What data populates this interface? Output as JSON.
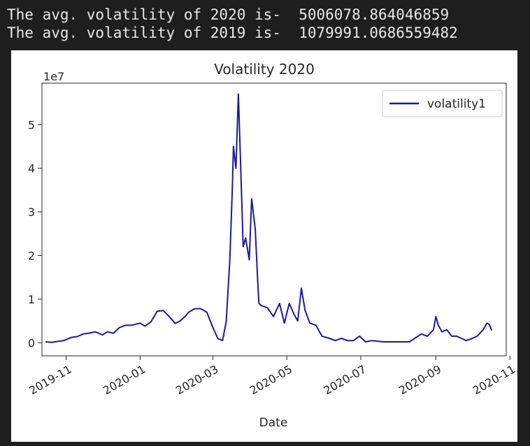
{
  "console": {
    "lines": [
      "The avg. volatility of 2020 is-  5006078.864046859",
      "The avg. volatility of 2019 is-  1079991.0686559482"
    ]
  },
  "chart_data": {
    "type": "line",
    "title": "Volatility 2020",
    "xlabel": "Date",
    "ylabel": "",
    "y_offset_label": "1e7",
    "y_multiplier": 10000000,
    "ylim": [
      -0.3,
      5.95
    ],
    "xlim": [
      "2019-10-12",
      "2020-10-29"
    ],
    "x_ticks": [
      "2019-11",
      "2020-01",
      "2020-03",
      "2020-05",
      "2020-07",
      "2020-09",
      "2020-11"
    ],
    "y_ticks": [
      0,
      1,
      2,
      3,
      4,
      5
    ],
    "grid": false,
    "legend": {
      "position": "top-right",
      "entries": [
        "volatility1"
      ]
    },
    "colors": {
      "volatility1": "#1a1a9c"
    },
    "series": [
      {
        "name": "volatility1",
        "x": [
          "2019-10-15",
          "2019-10-20",
          "2019-10-25",
          "2019-10-30",
          "2019-11-05",
          "2019-11-10",
          "2019-11-15",
          "2019-11-20",
          "2019-11-25",
          "2019-12-01",
          "2019-12-05",
          "2019-12-10",
          "2019-12-15",
          "2019-12-20",
          "2019-12-25",
          "2020-01-01",
          "2020-01-05",
          "2020-01-10",
          "2020-01-15",
          "2020-01-20",
          "2020-01-25",
          "2020-01-30",
          "2020-02-03",
          "2020-02-07",
          "2020-02-10",
          "2020-02-15",
          "2020-02-20",
          "2020-02-25",
          "2020-03-01",
          "2020-03-05",
          "2020-03-09",
          "2020-03-12",
          "2020-03-15",
          "2020-03-17",
          "2020-03-18",
          "2020-03-20",
          "2020-03-22",
          "2020-03-24",
          "2020-03-26",
          "2020-03-28",
          "2020-03-31",
          "2020-04-02",
          "2020-04-05",
          "2020-04-07",
          "2020-04-08",
          "2020-04-10",
          "2020-04-15",
          "2020-04-20",
          "2020-04-25",
          "2020-04-29",
          "2020-05-03",
          "2020-05-07",
          "2020-05-10",
          "2020-05-13",
          "2020-05-16",
          "2020-05-20",
          "2020-05-25",
          "2020-05-30",
          "2020-06-05",
          "2020-06-10",
          "2020-06-15",
          "2020-06-20",
          "2020-06-25",
          "2020-06-30",
          "2020-07-05",
          "2020-07-10",
          "2020-07-20",
          "2020-07-30",
          "2020-08-10",
          "2020-08-20",
          "2020-08-25",
          "2020-08-30",
          "2020-09-01",
          "2020-09-03",
          "2020-09-06",
          "2020-09-10",
          "2020-09-14",
          "2020-09-18",
          "2020-09-22",
          "2020-09-26",
          "2020-10-01",
          "2020-10-05",
          "2020-10-10",
          "2020-10-13",
          "2020-10-15",
          "2020-10-17"
        ],
        "y": [
          0.02,
          0.01,
          0.03,
          0.05,
          0.12,
          0.14,
          0.2,
          0.22,
          0.25,
          0.18,
          0.25,
          0.22,
          0.35,
          0.4,
          0.4,
          0.45,
          0.38,
          0.48,
          0.72,
          0.74,
          0.6,
          0.44,
          0.5,
          0.6,
          0.7,
          0.78,
          0.78,
          0.7,
          0.35,
          0.1,
          0.05,
          0.48,
          1.9,
          3.5,
          4.5,
          4.0,
          5.7,
          4.0,
          2.2,
          2.4,
          1.9,
          3.3,
          2.6,
          1.4,
          0.9,
          0.85,
          0.8,
          0.6,
          0.9,
          0.45,
          0.9,
          0.65,
          0.5,
          1.25,
          0.75,
          0.45,
          0.4,
          0.15,
          0.1,
          0.05,
          0.1,
          0.05,
          0.05,
          0.15,
          0.02,
          0.05,
          0.02,
          0.02,
          0.02,
          0.2,
          0.15,
          0.3,
          0.6,
          0.4,
          0.25,
          0.3,
          0.15,
          0.15,
          0.1,
          0.05,
          0.1,
          0.15,
          0.3,
          0.45,
          0.42,
          0.28
        ]
      }
    ]
  }
}
